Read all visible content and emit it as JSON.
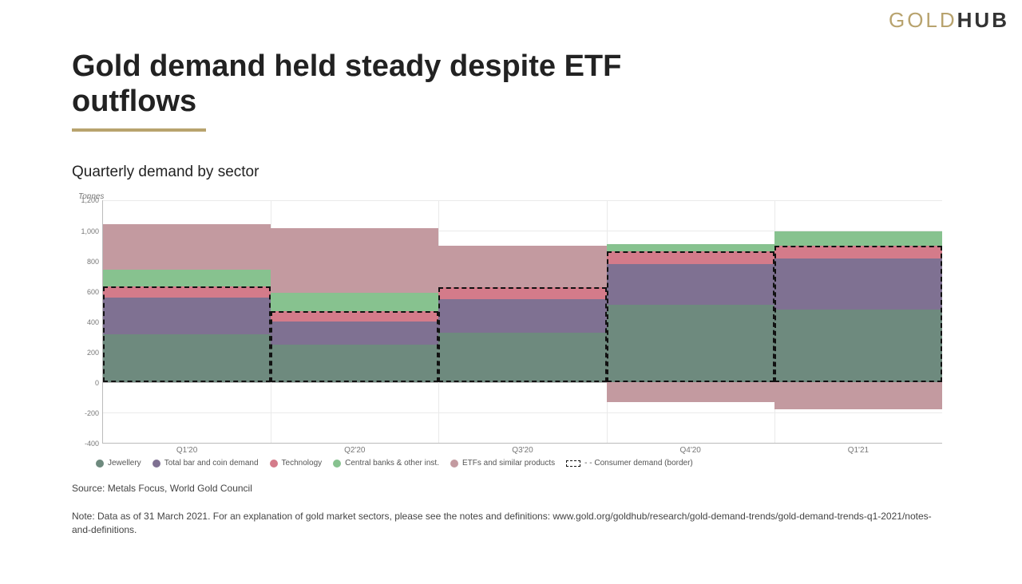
{
  "logo": {
    "part1": "GOLD",
    "part2": "HUB"
  },
  "title": "Gold demand held steady despite ETF outflows",
  "subtitle": "Quarterly demand by sector",
  "chart": {
    "type": "stacked-bar",
    "y_unit": "Tonnes",
    "ylim": [
      -400,
      1200
    ],
    "ytick_step": 200,
    "yticks": [
      -400,
      -200,
      0,
      200,
      400,
      600,
      800,
      1000,
      1200
    ],
    "background_color": "#ffffff",
    "grid_color": "#eaeaea",
    "axis_color": "#bbbbbb",
    "label_fontsize": 10,
    "label_color": "#777777",
    "categories": [
      "Q1'20",
      "Q2'20",
      "Q3'20",
      "Q4'20",
      "Q1'21"
    ],
    "series": {
      "jewellery": {
        "label": "Jewellery",
        "color": "#6e8a7e",
        "values": [
          320,
          250,
          330,
          510,
          480
        ]
      },
      "bar_coin": {
        "label": "Total bar and coin demand",
        "color": "#7f7192",
        "values": [
          240,
          150,
          220,
          270,
          340
        ]
      },
      "technology": {
        "label": "Technology",
        "color": "#d47b8a",
        "values": [
          75,
          70,
          80,
          85,
          80
        ]
      },
      "central_banks": {
        "label": "Central banks & other inst.",
        "color": "#87c28f",
        "values": [
          110,
          120,
          0,
          45,
          95
        ]
      },
      "etfs": {
        "label": "ETFs and similar products",
        "color": "#c39aa0",
        "values": [
          300,
          430,
          270,
          -130,
          -175
        ]
      },
      "consumer_border": {
        "label": "Consumer demand (border)",
        "style": "dashed",
        "includes": [
          "jewellery",
          "bar_coin",
          "technology"
        ]
      }
    },
    "stack_order": [
      "jewellery",
      "bar_coin",
      "technology",
      "central_banks",
      "etfs"
    ],
    "bar_width_pct": 20
  },
  "legend_order": [
    "jewellery",
    "bar_coin",
    "technology",
    "central_banks",
    "etfs",
    "consumer_border"
  ],
  "source": "Source: Metals Focus, World Gold Council",
  "note": "Note: Data as of 31 March 2021. For an explanation of gold market sectors, please see the notes and definitions: www.gold.org/goldhub/research/gold-demand-trends/gold-demand-trends-q1-2021/notes-and-definitions."
}
